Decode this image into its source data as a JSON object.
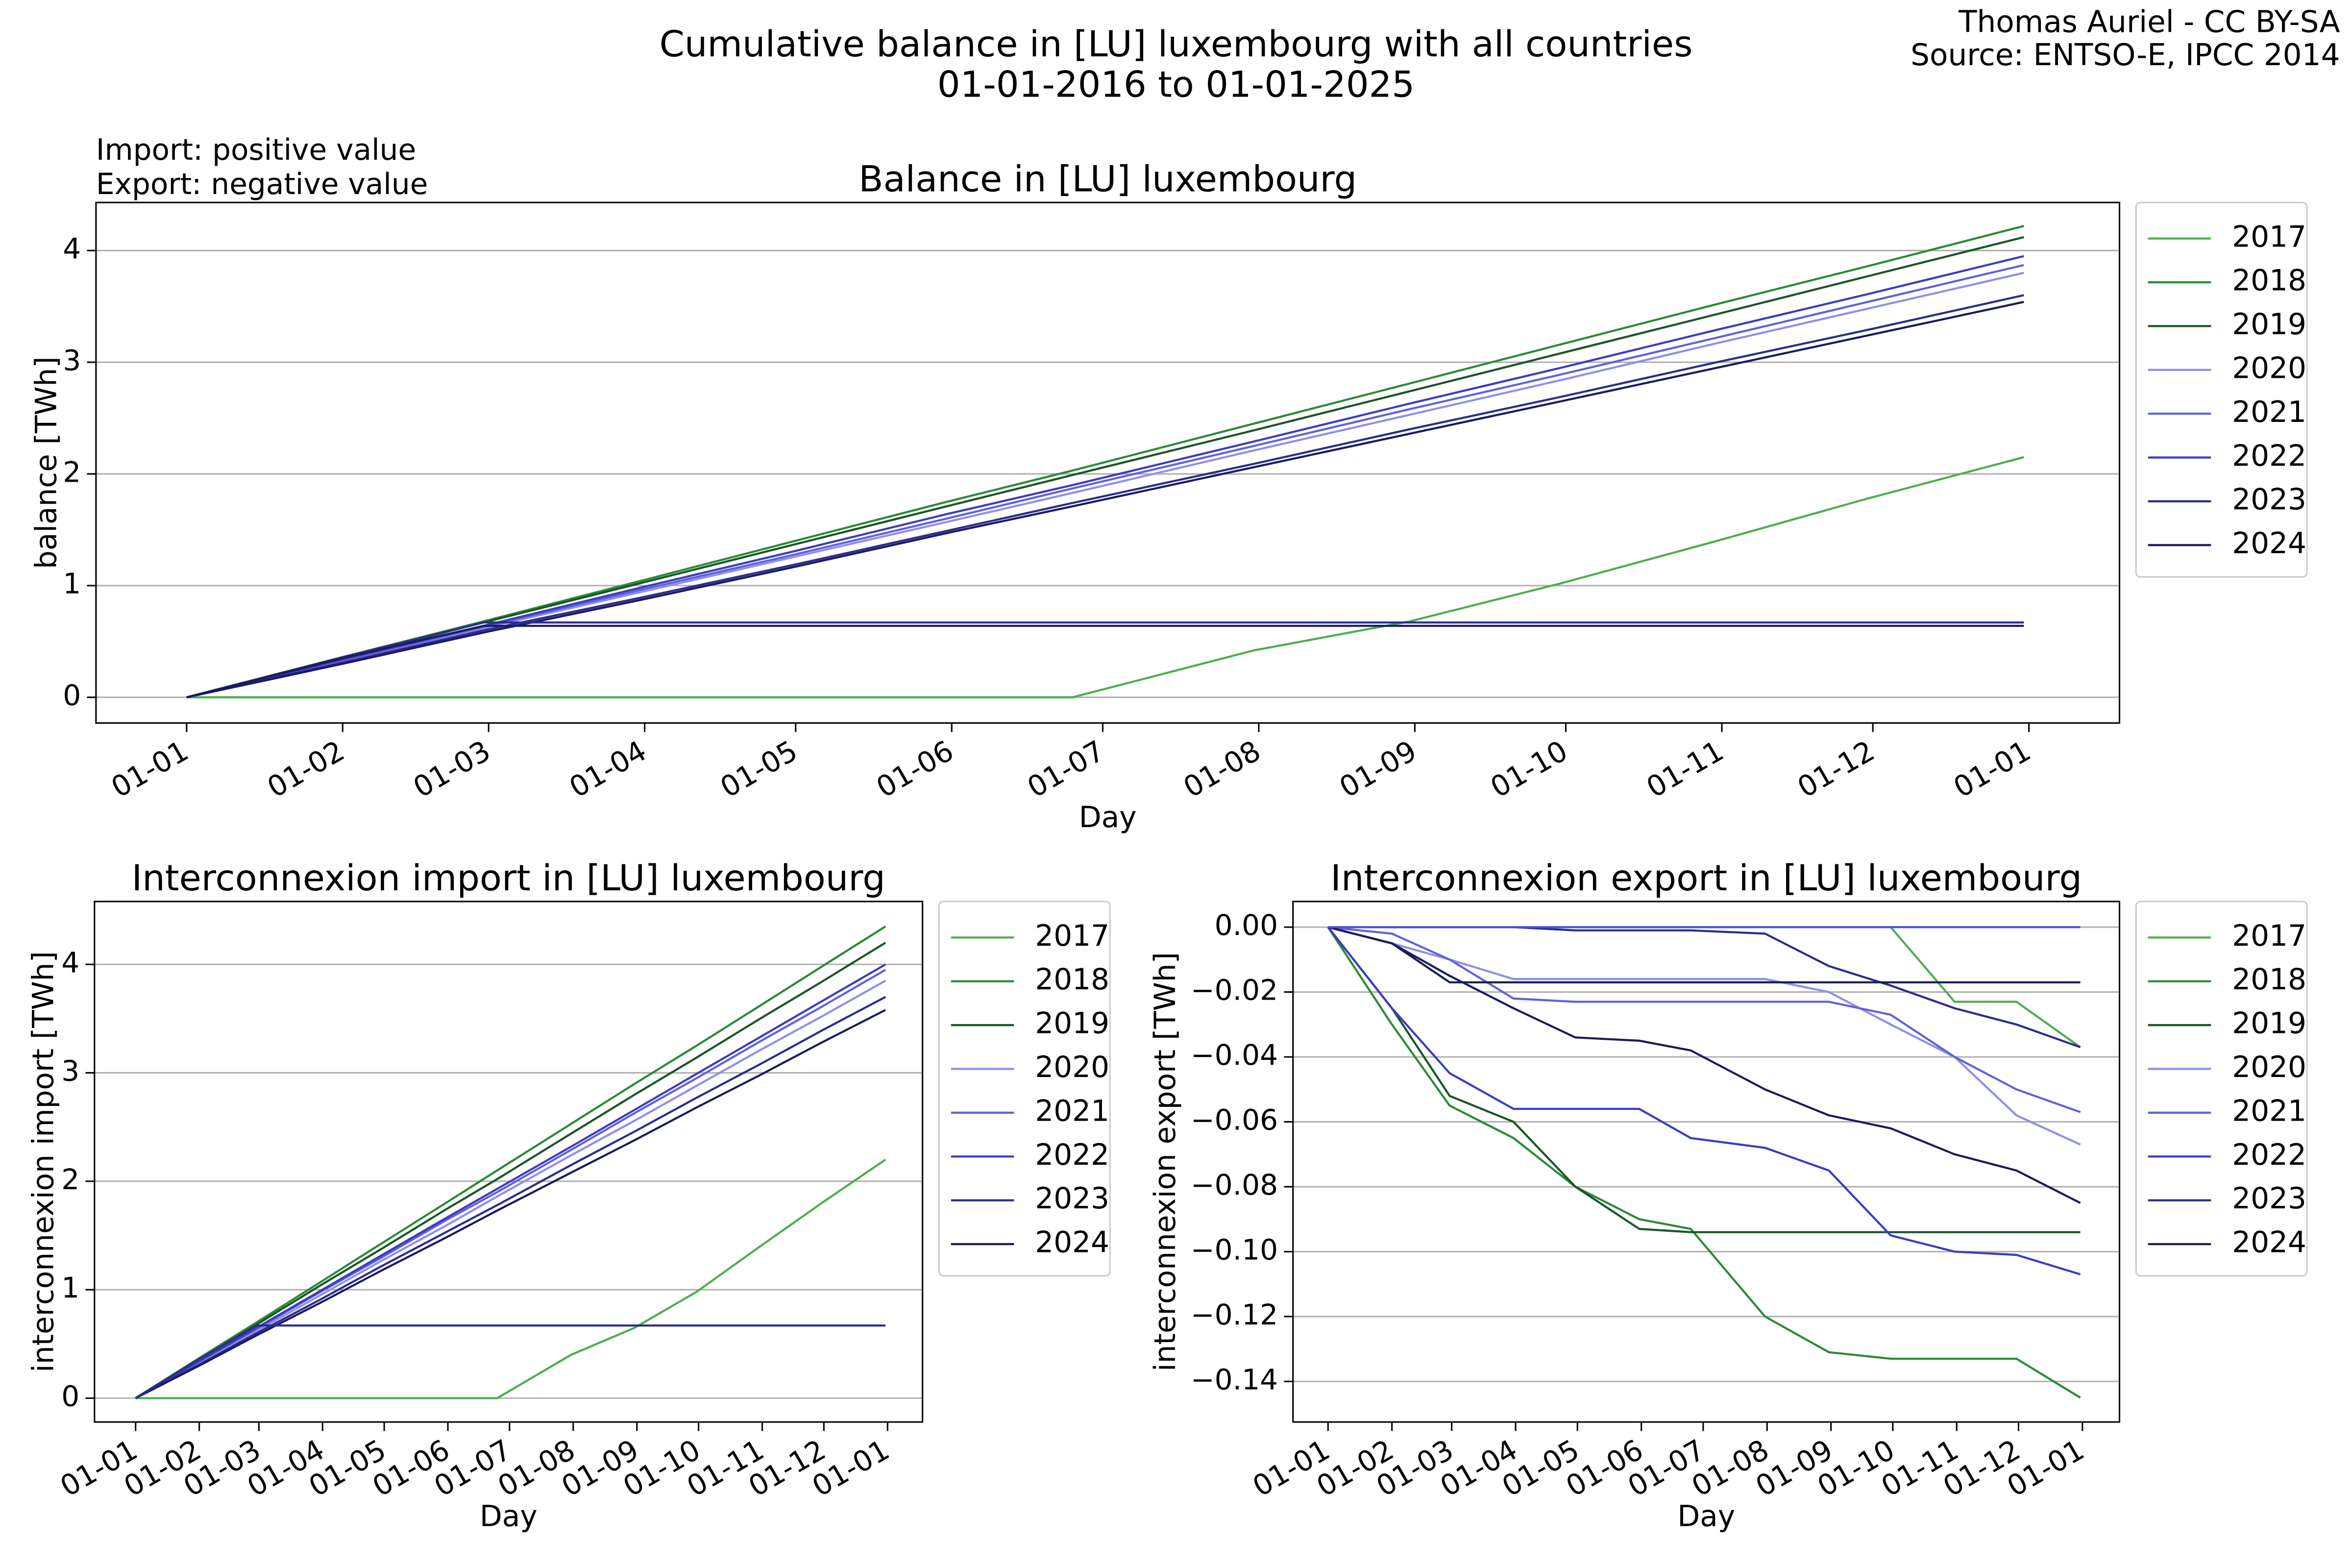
{
  "title": [
    "Cumulative balance in [LU] luxembourg with all countries",
    "01-01-2016 to 01-01-2025"
  ],
  "credit": [
    "Thomas Auriel - CC BY-SA",
    "Source: ENTSO-E, IPCC 2014"
  ],
  "notes": [
    "Import: positive value",
    "Export: negative value"
  ],
  "chart_data": [
    {
      "type": "line",
      "title": "Balance in [LU] luxembourg",
      "xlabel": "Day",
      "ylabel": "balance [TWh]",
      "x": [
        0,
        31,
        59,
        90,
        120,
        151,
        176,
        212,
        243,
        273,
        304,
        334,
        365
      ],
      "xlim": [
        -18,
        384
      ],
      "xticks": [
        {
          "value": 0,
          "label": "01-01"
        },
        {
          "value": 31,
          "label": "01-02"
        },
        {
          "value": 60,
          "label": "01-03"
        },
        {
          "value": 91,
          "label": "01-04"
        },
        {
          "value": 121,
          "label": "01-05"
        },
        {
          "value": 152,
          "label": "01-06"
        },
        {
          "value": 182,
          "label": "01-07"
        },
        {
          "value": 213,
          "label": "01-08"
        },
        {
          "value": 244,
          "label": "01-09"
        },
        {
          "value": 274,
          "label": "01-10"
        },
        {
          "value": 305,
          "label": "01-11"
        },
        {
          "value": 335,
          "label": "01-12"
        },
        {
          "value": 366,
          "label": "01-01"
        }
      ],
      "ylim": [
        -0.23,
        4.43
      ],
      "yticks": [
        0,
        1,
        2,
        3,
        4
      ],
      "grid": "y",
      "legend": "outside right",
      "series": [
        {
          "name": "2017",
          "color": "#4cae4c",
          "values": [
            0,
            0,
            0,
            0,
            0,
            0,
            0,
            0.42,
            0.68,
            1.02,
            1.4,
            1.78,
            2.15
          ]
        },
        {
          "name": "2018",
          "color": "#2a8a36",
          "values": [
            0,
            0.36,
            0.68,
            1.04,
            1.39,
            1.75,
            2.03,
            2.45,
            2.81,
            3.16,
            3.52,
            3.86,
            4.22
          ]
        },
        {
          "name": "2019",
          "color": "#1a5527",
          "values": [
            0,
            0.35,
            0.67,
            1.02,
            1.36,
            1.71,
            1.99,
            2.39,
            2.74,
            3.08,
            3.43,
            3.77,
            4.12
          ]
        },
        {
          "name": "2020",
          "color": "#8f8fe8",
          "values": [
            0,
            0.32,
            0.62,
            0.94,
            1.25,
            1.57,
            1.83,
            2.21,
            2.53,
            2.84,
            3.17,
            3.48,
            3.8
          ]
        },
        {
          "name": "2021",
          "color": "#6161da",
          "values": [
            0,
            0.33,
            0.63,
            0.96,
            1.27,
            1.6,
            1.87,
            2.25,
            2.58,
            2.89,
            3.22,
            3.54,
            3.87
          ]
        },
        {
          "name": "2022",
          "color": "#3b3bc4",
          "values": [
            0,
            0.34,
            0.64,
            0.98,
            1.3,
            1.64,
            1.9,
            2.29,
            2.63,
            2.95,
            3.29,
            3.61,
            3.95
          ]
        },
        {
          "name": "2023",
          "color": "#2c2c8c",
          "values": [
            0,
            0.31,
            0.6,
            0.89,
            1.18,
            1.49,
            1.74,
            2.09,
            2.4,
            2.69,
            3.0,
            3.29,
            3.6
          ]
        },
        {
          "name": "2024",
          "color": "#1b1b5c",
          "values": [
            0,
            0.3,
            0.58,
            0.87,
            1.16,
            1.47,
            1.71,
            2.06,
            2.36,
            2.65,
            2.95,
            3.24,
            3.54
          ]
        },
        {
          "name": null,
          "color": "#2c2c8c",
          "values": [
            0,
            0.36,
            0.67,
            0.67,
            0.67,
            0.67,
            0.67,
            0.67,
            0.67,
            0.67,
            0.67,
            0.67,
            0.67
          ]
        },
        {
          "name": null,
          "color": "#1b1b5c",
          "values": [
            0,
            0.35,
            0.64,
            0.64,
            0.64,
            0.64,
            0.64,
            0.64,
            0.64,
            0.64,
            0.64,
            0.64,
            0.64
          ]
        }
      ]
    },
    {
      "type": "line",
      "title": "Interconnexion import in [LU] luxembourg",
      "xlabel": "Day",
      "ylabel": "interconnexion import [TWh]",
      "x": [
        0,
        31,
        59,
        90,
        120,
        151,
        176,
        212,
        243,
        273,
        304,
        334,
        365
      ],
      "xlim": [
        -20,
        383
      ],
      "xticks": [
        {
          "value": 0,
          "label": "01-01"
        },
        {
          "value": 31,
          "label": "01-02"
        },
        {
          "value": 60,
          "label": "01-03"
        },
        {
          "value": 91,
          "label": "01-04"
        },
        {
          "value": 121,
          "label": "01-05"
        },
        {
          "value": 152,
          "label": "01-06"
        },
        {
          "value": 182,
          "label": "01-07"
        },
        {
          "value": 213,
          "label": "01-08"
        },
        {
          "value": 244,
          "label": "01-09"
        },
        {
          "value": 274,
          "label": "01-10"
        },
        {
          "value": 305,
          "label": "01-11"
        },
        {
          "value": 335,
          "label": "01-12"
        },
        {
          "value": 366,
          "label": "01-01"
        }
      ],
      "ylim": [
        -0.22,
        4.58
      ],
      "yticks": [
        0,
        1,
        2,
        3,
        4
      ],
      "grid": "y",
      "legend": "outside right",
      "series": [
        {
          "name": "2017",
          "color": "#4cae4c",
          "values": [
            0,
            0,
            0,
            0,
            0,
            0,
            0,
            0.4,
            0.65,
            0.98,
            1.4,
            1.8,
            2.2
          ]
        },
        {
          "name": "2018",
          "color": "#2a8a36",
          "values": [
            0,
            0.37,
            0.7,
            1.07,
            1.43,
            1.8,
            2.1,
            2.53,
            2.9,
            3.25,
            3.62,
            3.98,
            4.35
          ]
        },
        {
          "name": "2019",
          "color": "#1a5527",
          "values": [
            0,
            0.36,
            0.68,
            1.04,
            1.38,
            1.74,
            2.02,
            2.44,
            2.8,
            3.14,
            3.5,
            3.84,
            4.2
          ]
        },
        {
          "name": "2020",
          "color": "#8f8fe8",
          "values": [
            0,
            0.33,
            0.62,
            0.95,
            1.27,
            1.59,
            1.86,
            2.24,
            2.56,
            2.88,
            3.21,
            3.52,
            3.85
          ]
        },
        {
          "name": "2021",
          "color": "#6161da",
          "values": [
            0,
            0.34,
            0.64,
            0.98,
            1.3,
            1.64,
            1.9,
            2.29,
            2.63,
            2.95,
            3.29,
            3.61,
            3.95
          ]
        },
        {
          "name": "2022",
          "color": "#3b3bc4",
          "values": [
            0,
            0.34,
            0.65,
            0.99,
            1.32,
            1.66,
            1.93,
            2.32,
            2.66,
            2.99,
            3.33,
            3.66,
            4.0
          ]
        },
        {
          "name": "2023",
          "color": "#2c2c8c",
          "values": [
            0,
            0.31,
            0.6,
            0.91,
            1.22,
            1.53,
            1.78,
            2.15,
            2.46,
            2.77,
            3.08,
            3.39,
            3.7
          ]
        },
        {
          "name": "2024",
          "color": "#1b1b5c",
          "values": [
            0,
            0.3,
            0.58,
            0.88,
            1.18,
            1.48,
            1.73,
            2.08,
            2.38,
            2.68,
            2.98,
            3.28,
            3.58
          ]
        },
        {
          "name": null,
          "color": "#2c2c8c",
          "values": [
            0,
            0.36,
            0.67,
            0.67,
            0.67,
            0.67,
            0.67,
            0.67,
            0.67,
            0.67,
            0.67,
            0.67,
            0.67
          ]
        }
      ]
    },
    {
      "type": "line",
      "title": "Interconnexion export in [LU] luxembourg",
      "xlabel": "Day",
      "ylabel": "interconnexion export [TWh]",
      "x": [
        0,
        31,
        59,
        90,
        120,
        151,
        176,
        212,
        243,
        273,
        304,
        334,
        365
      ],
      "xlim": [
        -17,
        384
      ],
      "xticks": [
        {
          "value": 0,
          "label": "01-01"
        },
        {
          "value": 31,
          "label": "01-02"
        },
        {
          "value": 60,
          "label": "01-03"
        },
        {
          "value": 91,
          "label": "01-04"
        },
        {
          "value": 121,
          "label": "01-05"
        },
        {
          "value": 152,
          "label": "01-06"
        },
        {
          "value": 182,
          "label": "01-07"
        },
        {
          "value": 213,
          "label": "01-08"
        },
        {
          "value": 244,
          "label": "01-09"
        },
        {
          "value": 274,
          "label": "01-10"
        },
        {
          "value": 305,
          "label": "01-11"
        },
        {
          "value": 335,
          "label": "01-12"
        },
        {
          "value": 366,
          "label": "01-01"
        }
      ],
      "ylim": [
        -0.1525,
        0.0079
      ],
      "yticks": [
        {
          "value": 0,
          "label": "0.00"
        },
        {
          "value": -0.02,
          "label": "−0.02"
        },
        {
          "value": -0.04,
          "label": "−0.04"
        },
        {
          "value": -0.06,
          "label": "−0.06"
        },
        {
          "value": -0.08,
          "label": "−0.08"
        },
        {
          "value": -0.1,
          "label": "−0.10"
        },
        {
          "value": -0.12,
          "label": "−0.12"
        },
        {
          "value": -0.14,
          "label": "−0.14"
        }
      ],
      "grid": "y",
      "legend": "outside right",
      "series": [
        {
          "name": "2017",
          "color": "#4cae4c",
          "values": [
            0,
            0,
            0,
            0,
            0,
            0,
            0,
            0,
            0,
            0,
            -0.023,
            -0.023,
            -0.037
          ]
        },
        {
          "name": "2018",
          "color": "#2a8a36",
          "values": [
            0,
            -0.03,
            -0.055,
            -0.065,
            -0.08,
            -0.09,
            -0.093,
            -0.12,
            -0.131,
            -0.133,
            -0.133,
            -0.133,
            -0.145
          ]
        },
        {
          "name": "2019",
          "color": "#1a5527",
          "values": [
            0,
            -0.025,
            -0.052,
            -0.06,
            -0.08,
            -0.093,
            -0.094,
            -0.094,
            -0.094,
            -0.094,
            -0.094,
            -0.094,
            -0.094
          ]
        },
        {
          "name": "2020",
          "color": "#8f8fe8",
          "values": [
            0,
            -0.005,
            -0.01,
            -0.016,
            -0.016,
            -0.016,
            -0.016,
            -0.016,
            -0.02,
            -0.03,
            -0.04,
            -0.058,
            -0.067
          ]
        },
        {
          "name": "2021",
          "color": "#6161da",
          "values": [
            0,
            -0.002,
            -0.01,
            -0.022,
            -0.023,
            -0.023,
            -0.023,
            -0.023,
            -0.023,
            -0.027,
            -0.04,
            -0.05,
            -0.057
          ]
        },
        {
          "name": "2022",
          "color": "#3b3bc4",
          "values": [
            0,
            -0.025,
            -0.045,
            -0.056,
            -0.056,
            -0.056,
            -0.065,
            -0.068,
            -0.075,
            -0.095,
            -0.1,
            -0.101,
            -0.107
          ]
        },
        {
          "name": "2023",
          "color": "#2c2c8c",
          "values": [
            0,
            0,
            0,
            0,
            -0.001,
            -0.001,
            -0.001,
            -0.002,
            -0.012,
            -0.018,
            -0.025,
            -0.03,
            -0.037
          ]
        },
        {
          "name": "2024",
          "color": "#1b1b5c",
          "values": [
            0,
            -0.005,
            -0.015,
            -0.025,
            -0.034,
            -0.035,
            -0.038,
            -0.05,
            -0.058,
            -0.062,
            -0.07,
            -0.075,
            -0.085
          ]
        },
        {
          "name": null,
          "color": "#1b1b5c",
          "values": [
            0,
            -0.005,
            -0.017,
            -0.017,
            -0.017,
            -0.017,
            -0.017,
            -0.017,
            -0.017,
            -0.017,
            -0.017,
            -0.017,
            -0.017
          ]
        },
        {
          "name": null,
          "color": "#5050d8",
          "values": [
            0,
            0,
            0,
            0,
            0,
            0,
            0,
            0,
            0,
            0,
            0,
            0,
            0
          ]
        }
      ]
    }
  ]
}
